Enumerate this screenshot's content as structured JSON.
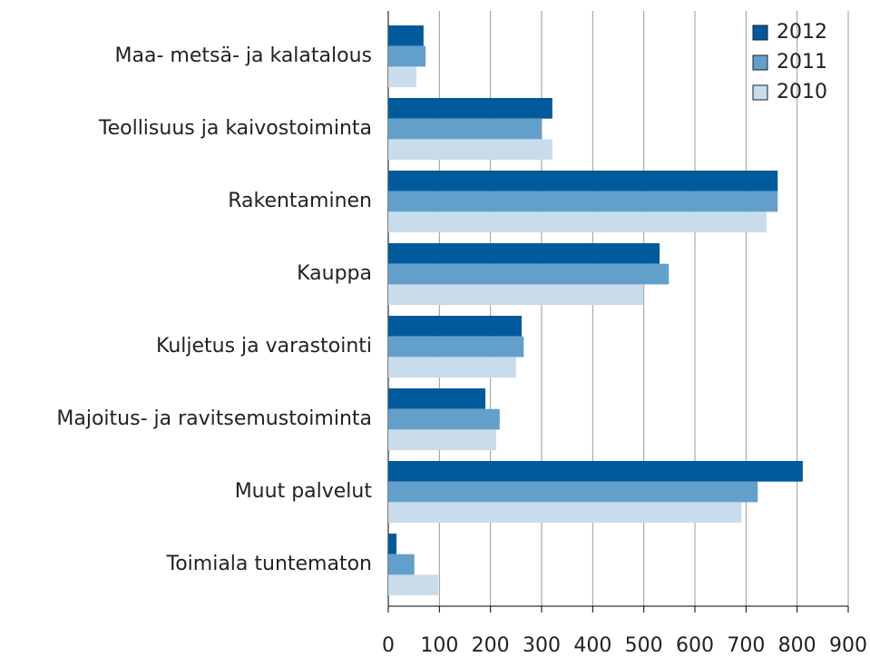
{
  "chart_data": {
    "type": "bar",
    "orientation": "horizontal",
    "categories": [
      "Maa- metsä- ja kalatalous",
      "Teollisuus ja kaivostoiminta",
      "Rakentaminen",
      "Kauppa",
      "Kuljetus ja varastointi",
      "Majoitus- ja ravitsemustoiminta",
      "Muut palvelut",
      "Toimiala tuntematon"
    ],
    "series": [
      {
        "name": "2012",
        "color": "#005a9b",
        "values": [
          69,
          321,
          762,
          531,
          261,
          190,
          811,
          16
        ]
      },
      {
        "name": "2011",
        "color": "#62a0cb",
        "values": [
          73,
          300,
          762,
          549,
          265,
          218,
          723,
          51
        ]
      },
      {
        "name": "2010",
        "color": "#c8dceb",
        "values": [
          55,
          321,
          740,
          499,
          250,
          211,
          691,
          98
        ]
      }
    ],
    "xlim": [
      0,
      900
    ],
    "xticks": [
      0,
      100,
      200,
      300,
      400,
      500,
      600,
      700,
      800,
      900
    ],
    "grid": true,
    "legend": "top-right"
  }
}
